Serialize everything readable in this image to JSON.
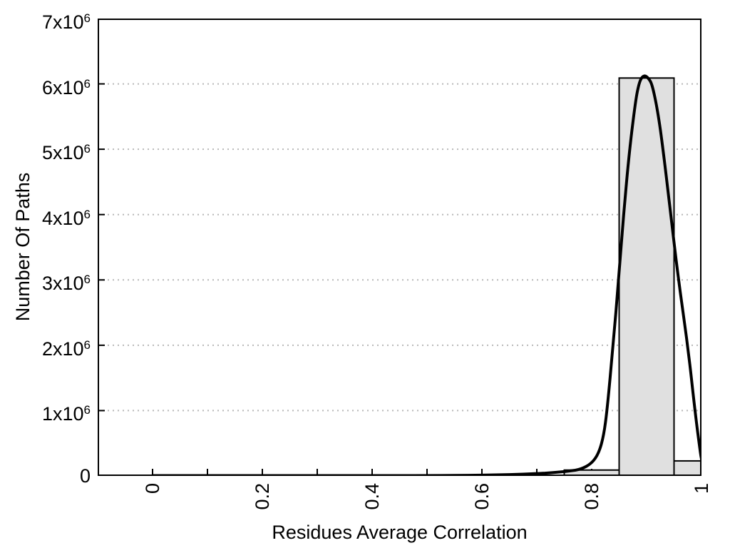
{
  "chart_data": {
    "type": "bar",
    "subtype": "histogram-with-fit-curve",
    "title": "",
    "xlabel": "Residues Average Correlation",
    "ylabel": "Number Of Paths",
    "xlim": [
      -0.1,
      1.0
    ],
    "ylim": [
      0,
      7000000
    ],
    "grid": "horizontal-dotted",
    "legend": "none",
    "colors": {
      "background": "#ffffff",
      "frame": "#000000",
      "grid": "#b8b8b8",
      "bar_fill": "#e0e0e0",
      "bar_stroke": "#000000",
      "curve": "#000000"
    },
    "x_ticks": [
      0,
      0.1,
      0.2,
      0.3,
      0.4,
      0.5,
      0.6,
      0.7,
      0.8,
      0.9,
      1.0
    ],
    "x_major_ticks": [
      0,
      0.2,
      0.4,
      0.6,
      0.8,
      1.0
    ],
    "x_tick_labels": [
      "0",
      "0.2",
      "0.4",
      "0.6",
      "0.8",
      "1"
    ],
    "y_ticks": [
      0,
      1000000,
      2000000,
      3000000,
      4000000,
      5000000,
      6000000,
      7000000
    ],
    "y_tick_labels": [
      {
        "base": "0",
        "exp": ""
      },
      {
        "base": "1x10",
        "exp": "6"
      },
      {
        "base": "2x10",
        "exp": "6"
      },
      {
        "base": "3x10",
        "exp": "6"
      },
      {
        "base": "4x10",
        "exp": "6"
      },
      {
        "base": "5x10",
        "exp": "6"
      },
      {
        "base": "6x10",
        "exp": "6"
      },
      {
        "base": "7x10",
        "exp": "6"
      }
    ],
    "bars": {
      "bins": [
        {
          "x_start": 0.75,
          "x_end": 0.85,
          "count": 90000
        },
        {
          "x_start": 0.85,
          "x_end": 0.95,
          "count": 6090000
        },
        {
          "x_start": 0.95,
          "x_end": 1.0,
          "count": 230000
        }
      ]
    },
    "fit_curve": {
      "description": "bell-shaped fit peaking near x=0.9",
      "peak": {
        "x": 0.897,
        "y": 6130000
      },
      "points": [
        [
          0.0,
          5000
        ],
        [
          0.05,
          5000
        ],
        [
          0.1,
          5000
        ],
        [
          0.15,
          5000
        ],
        [
          0.2,
          5000
        ],
        [
          0.25,
          5000
        ],
        [
          0.3,
          5000
        ],
        [
          0.35,
          5000
        ],
        [
          0.4,
          5000
        ],
        [
          0.45,
          5000
        ],
        [
          0.5,
          6000
        ],
        [
          0.55,
          8000
        ],
        [
          0.6,
          12000
        ],
        [
          0.65,
          20000
        ],
        [
          0.7,
          35000
        ],
        [
          0.73,
          50000
        ],
        [
          0.76,
          75000
        ],
        [
          0.78,
          100000
        ],
        [
          0.8,
          190000
        ],
        [
          0.813,
          350000
        ],
        [
          0.822,
          620000
        ],
        [
          0.828,
          1000000
        ],
        [
          0.839,
          2000000
        ],
        [
          0.849,
          3000000
        ],
        [
          0.858,
          4000000
        ],
        [
          0.869,
          5000000
        ],
        [
          0.88,
          5750000
        ],
        [
          0.886,
          6000000
        ],
        [
          0.891,
          6100000
        ],
        [
          0.897,
          6130000
        ],
        [
          0.903,
          6090000
        ],
        [
          0.91,
          6000000
        ],
        [
          0.92,
          5600000
        ],
        [
          0.93,
          5000000
        ],
        [
          0.944,
          4000000
        ],
        [
          0.958,
          3000000
        ],
        [
          0.975,
          2000000
        ],
        [
          0.988,
          1000000
        ],
        [
          0.998,
          350000
        ],
        [
          1.0,
          260000
        ]
      ]
    }
  }
}
